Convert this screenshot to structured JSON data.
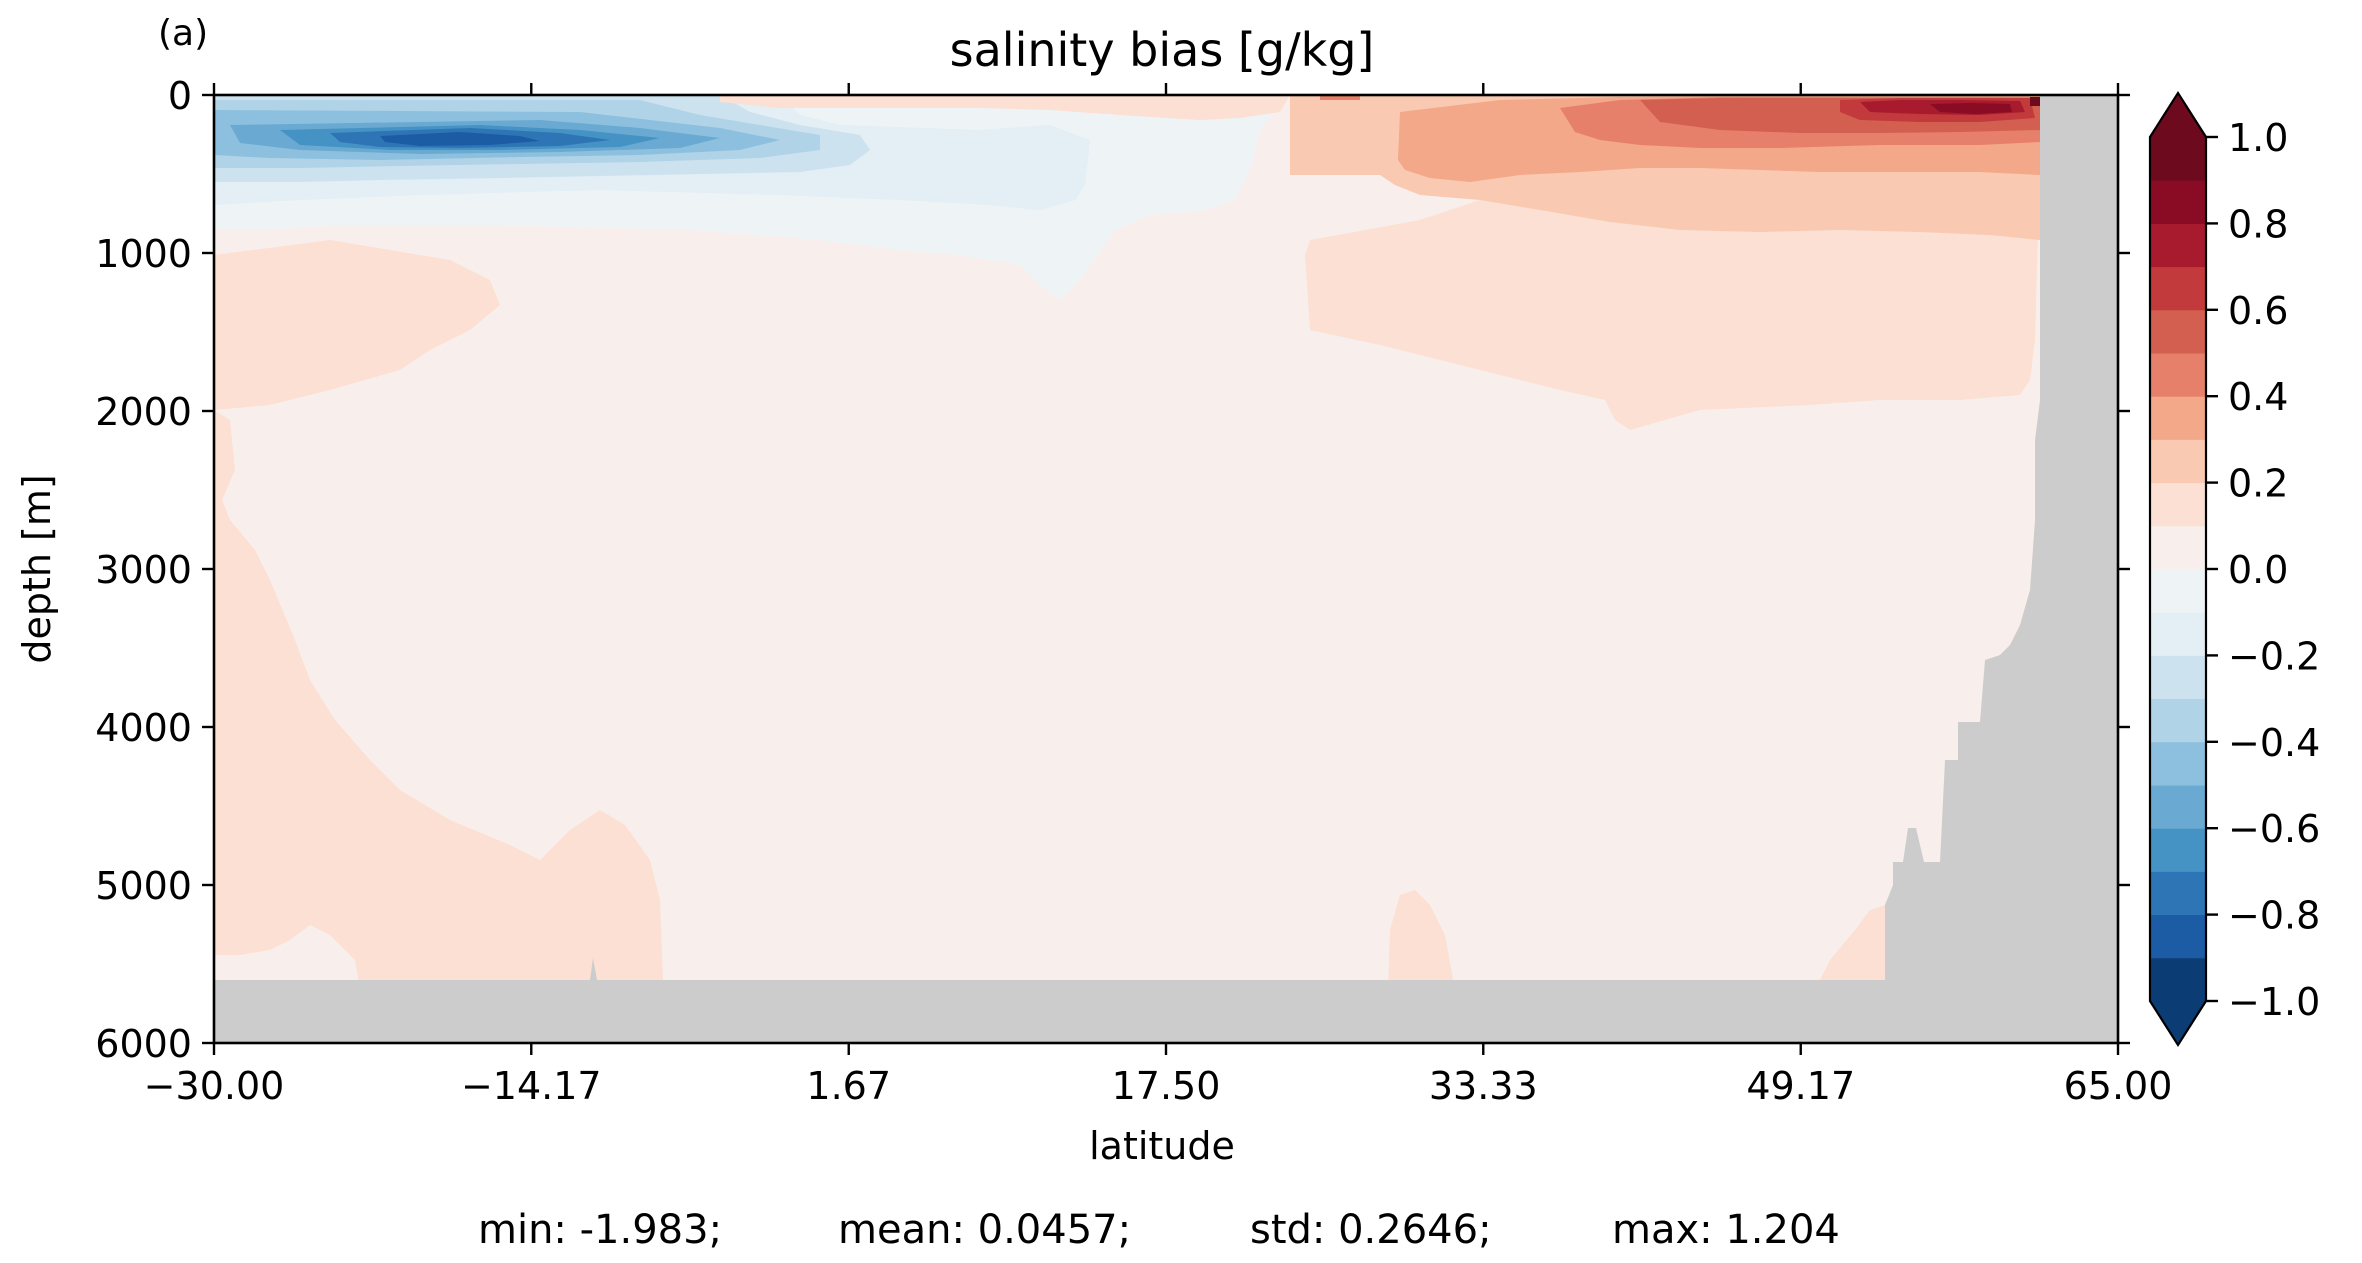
{
  "panel_label": "(a)",
  "chart_data": {
    "type": "heatmap",
    "subtype": "filled-contour",
    "title": "salinity bias [g/kg]",
    "xlabel": "latitude",
    "ylabel": "depth [m]",
    "xlim": [
      -30.0,
      65.0
    ],
    "ylim": [
      6000,
      0
    ],
    "y_inverted": true,
    "x_ticks": [
      "−30.00",
      "−14.17",
      "1.67",
      "17.50",
      "33.33",
      "49.17",
      "65.00"
    ],
    "x_tick_values": [
      -30.0,
      -14.17,
      1.67,
      17.5,
      33.33,
      49.17,
      65.0
    ],
    "y_ticks": [
      "0",
      "1000",
      "2000",
      "3000",
      "4000",
      "5000",
      "6000"
    ],
    "y_tick_values": [
      0,
      1000,
      2000,
      3000,
      4000,
      5000,
      6000
    ],
    "colormap": "RdBu_r",
    "mask_color": "#cccccc",
    "colorbar": {
      "levels": [
        -1.0,
        -0.9,
        -0.8,
        -0.7,
        -0.6,
        -0.5,
        -0.4,
        -0.3,
        -0.2,
        -0.1,
        0.0,
        0.1,
        0.2,
        0.3,
        0.4,
        0.5,
        0.6,
        0.7,
        0.8,
        0.9,
        1.0
      ],
      "tick_values": [
        -1.0,
        -0.8,
        -0.6,
        -0.4,
        -0.2,
        0.0,
        0.2,
        0.4,
        0.6,
        0.8,
        1.0
      ],
      "tick_labels": [
        "−1.0",
        "−0.8",
        "−0.6",
        "−0.4",
        "−0.2",
        "0.0",
        "0.2",
        "0.4",
        "0.6",
        "0.8",
        "1.0"
      ],
      "colors": [
        "#0b3c74",
        "#1b5ca4",
        "#2e75b5",
        "#4592c4",
        "#6aaad2",
        "#8dc0de",
        "#b0d3e7",
        "#cde2ef",
        "#e3eef5",
        "#eef3f6",
        "#f8efec",
        "#fbe0d3",
        "#f9c9b1",
        "#f3a889",
        "#e6806a",
        "#d35f50",
        "#c23a3b",
        "#a81a2e",
        "#8a0b24",
        "#6e0a1e"
      ],
      "extend": "both",
      "over_color": "#6e0a1e",
      "under_color": "#0b3c74"
    },
    "statistics": {
      "min_label": "min: -1.983;",
      "mean_label": "mean: 0.0457;",
      "std_label": "std: 0.2646;",
      "max_label": "max: 1.204"
    }
  }
}
